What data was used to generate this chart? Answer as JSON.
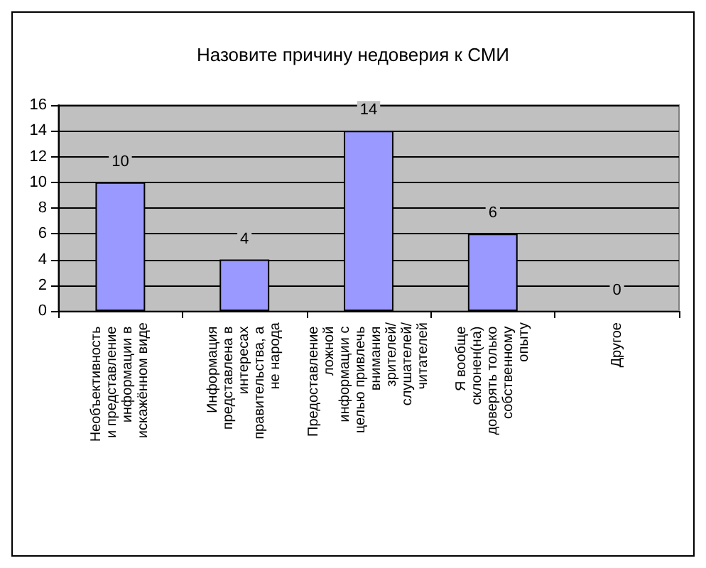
{
  "chart_data": {
    "type": "bar",
    "title": "Назовите причину недоверия к СМИ",
    "categories": [
      "Необъективность и представление информации в искажённом виде",
      "Информация представлена в интересах правительства, а не народа",
      "Предоставление ложной информации с целью привлечь внимания зрителей/слушателей/читателей",
      "Я вообще склонен(на) доверять только собственному опыту",
      "Другое"
    ],
    "values": [
      10,
      4,
      14,
      6,
      0
    ],
    "color": "#9999ff",
    "ylim": [
      0,
      16
    ],
    "yticks": [
      0,
      2,
      4,
      6,
      8,
      10,
      12,
      14,
      16
    ],
    "grid": "y",
    "data_labels": true
  }
}
